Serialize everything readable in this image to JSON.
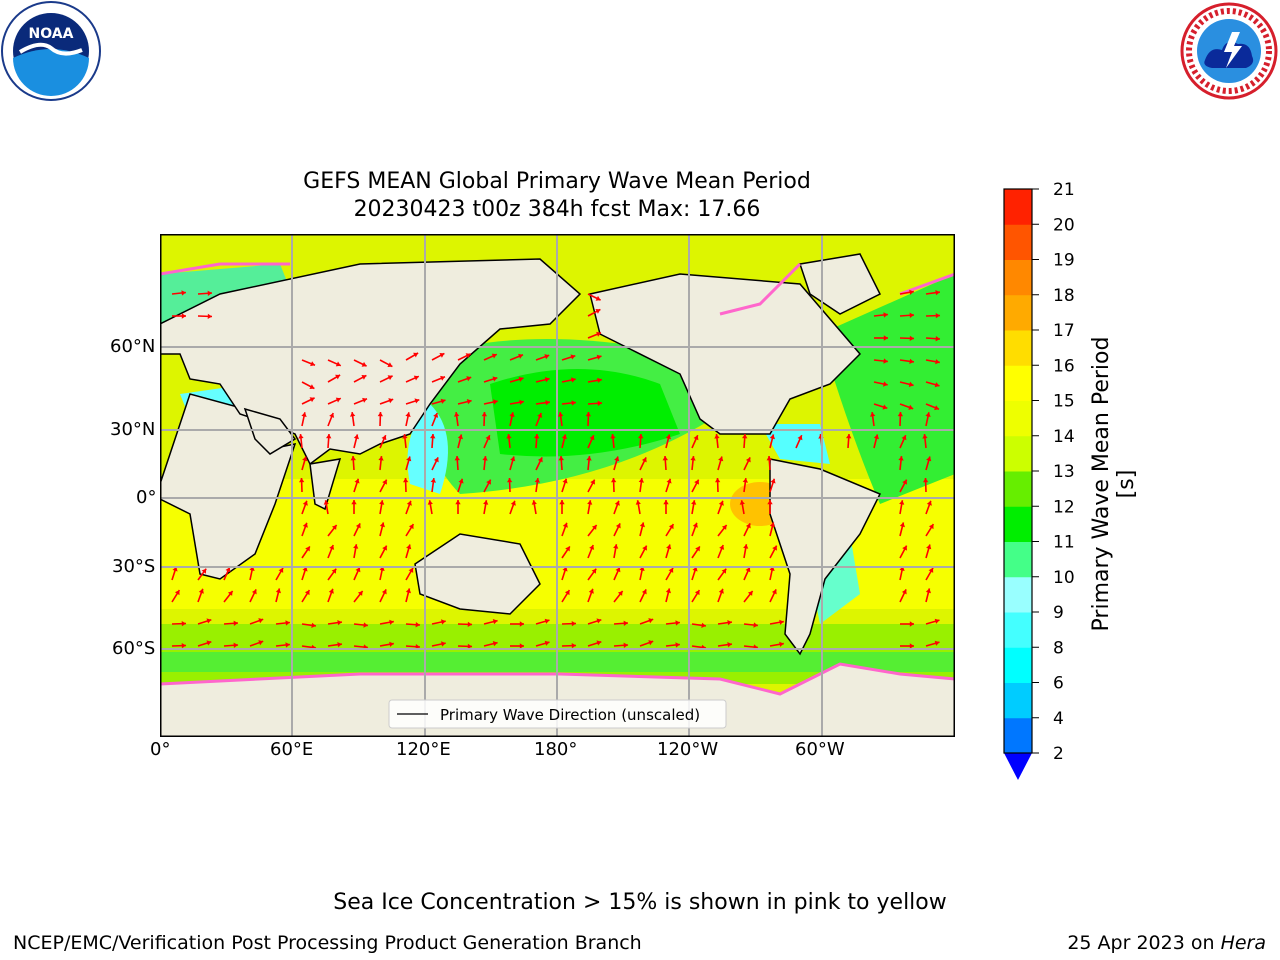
{
  "header": {
    "left_logo": {
      "icon": "noaa-logo",
      "text": "NOAA"
    },
    "right_logo": {
      "icon": "nws-logo"
    }
  },
  "title": {
    "line1": "GEFS MEAN Global Primary Wave Mean Period",
    "line2": "20230423 t00z 384h fcst   Max: 17.66"
  },
  "map": {
    "lat_labels": [
      "60°N",
      "30°N",
      "0°",
      "30°S",
      "60°S"
    ],
    "lon_labels": [
      "0°",
      "60°E",
      "120°E",
      "180°",
      "120°W",
      "60°W"
    ],
    "legend_label": "Primary Wave Direction (unscaled)",
    "arrow_color": "#ff0000",
    "land_color": "#efedde",
    "ice_color": "#ff66cc"
  },
  "colorbar": {
    "label": "Primary Wave Mean Period [s]",
    "ticks": [
      "2",
      "4",
      "6",
      "8",
      "9",
      "10",
      "11",
      "12",
      "13",
      "14",
      "15",
      "16",
      "17",
      "18",
      "19",
      "20",
      "21"
    ],
    "colors": [
      "#0077ff",
      "#00ccff",
      "#00ffff",
      "#44ffff",
      "#99ffff",
      "#44ff88",
      "#00ee00",
      "#66ee00",
      "#ccff00",
      "#eeff00",
      "#ffff00",
      "#ffdd00",
      "#ffaa00",
      "#ff8800",
      "#ff5500",
      "#ff2200",
      "#ff0000"
    ],
    "extend_color": "#0000ff"
  },
  "notes": {
    "sea_ice": "Sea Ice Concentration > 15% is shown in pink to yellow",
    "branch": "NCEP/EMC/Verification Post Processing Product Generation Branch",
    "date_prefix": "25 Apr 2023 on ",
    "host": "Hera"
  }
}
